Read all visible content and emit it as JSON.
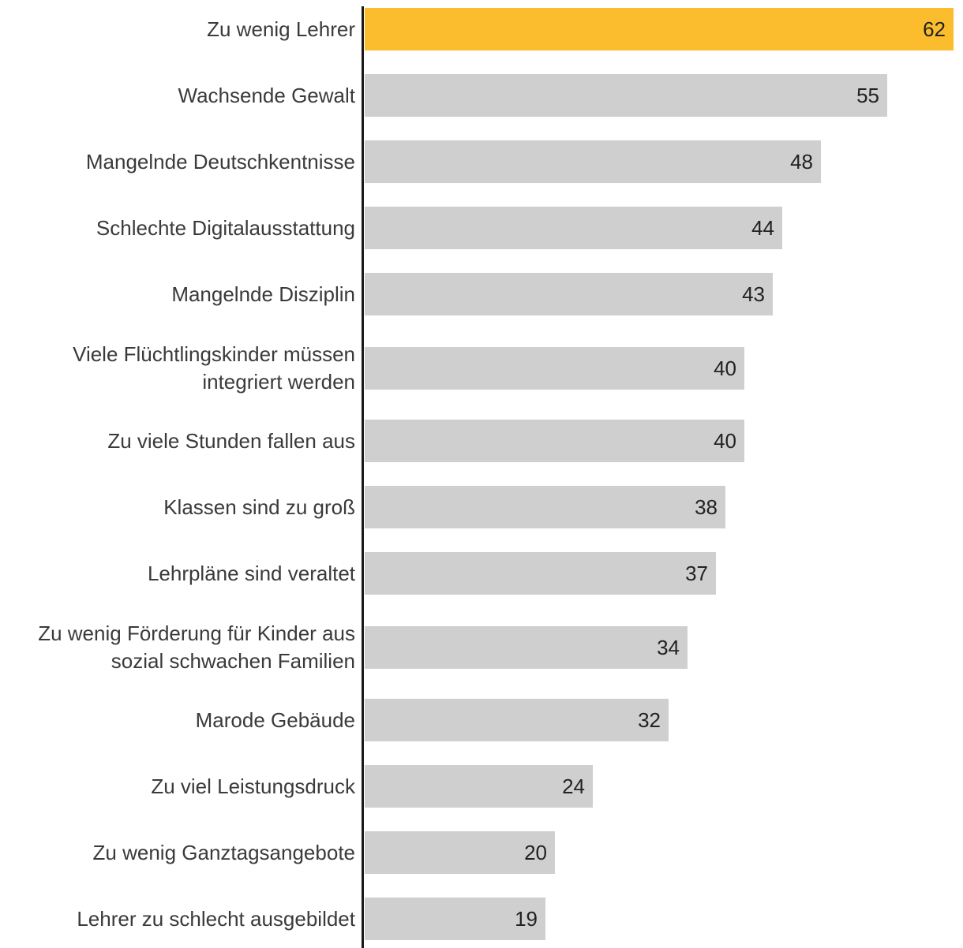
{
  "chart_data": {
    "type": "bar",
    "orientation": "horizontal",
    "unit": "",
    "xlim": [
      0,
      62
    ],
    "highlight_color": "#fbbd2e",
    "bar_color": "#cfcfcf",
    "categories": [
      [
        "Zu wenig Lehrer"
      ],
      [
        "Wachsende Gewalt"
      ],
      [
        "Mangelnde Deutschkentnisse"
      ],
      [
        "Schlechte Digitalausstattung"
      ],
      [
        "Mangelnde Disziplin"
      ],
      [
        "Viele Flüchtlingskinder müssen",
        "integriert werden"
      ],
      [
        "Zu viele Stunden fallen aus"
      ],
      [
        "Klassen sind zu groß"
      ],
      [
        "Lehrpläne sind veraltet"
      ],
      [
        "Zu wenig Förderung für Kinder aus",
        "sozial schwachen Familien"
      ],
      [
        "Marode Gebäude"
      ],
      [
        "Zu viel Leistungsdruck"
      ],
      [
        "Zu wenig Ganztagsangebote"
      ],
      [
        "Lehrer zu schlecht ausgebildet"
      ]
    ],
    "values": [
      62,
      55,
      48,
      44,
      43,
      40,
      40,
      38,
      37,
      34,
      32,
      24,
      20,
      19
    ],
    "highlighted_index": 0
  }
}
